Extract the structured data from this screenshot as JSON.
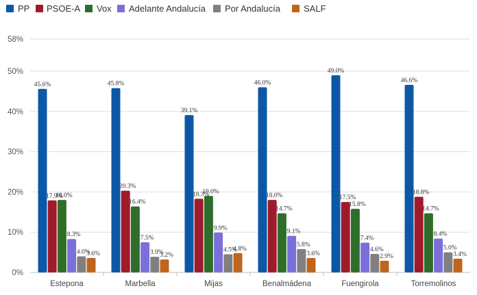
{
  "chart_data": {
    "type": "bar",
    "title": "",
    "xlabel": "",
    "ylabel": "",
    "ylim": [
      0,
      58
    ],
    "yticks": [
      0,
      10,
      20,
      30,
      40,
      50,
      58
    ],
    "ytick_labels": [
      "0%",
      "10%",
      "20%",
      "30%",
      "40%",
      "50%",
      "58%"
    ],
    "grid": true,
    "legend_position": "top-left",
    "categories": [
      "Estepona",
      "Marbella",
      "Mijas",
      "Benalmádena",
      "Fuengirola",
      "Torremolinos"
    ],
    "series": [
      {
        "name": "PP",
        "color": "#0d58a6",
        "values": [
          45.6,
          45.8,
          39.1,
          46.0,
          49.0,
          46.6
        ],
        "labels": [
          "45.6%",
          "45.8%",
          "39.1%",
          "46.0%",
          "49.0%",
          "46.6%"
        ]
      },
      {
        "name": "PSOE-A",
        "color": "#9e1b2b",
        "values": [
          17.9,
          20.3,
          18.3,
          18.0,
          17.5,
          18.8
        ],
        "labels": [
          "17.9%",
          "20.3%",
          "18.3%",
          "18.0%",
          "17.5%",
          "18.8%"
        ]
      },
      {
        "name": "Vox",
        "color": "#2f6e2a",
        "values": [
          18.0,
          16.4,
          19.0,
          14.7,
          15.8,
          14.7
        ],
        "labels": [
          "18.0%",
          "16.4%",
          "19.0%",
          "14.7%",
          "15.8%",
          "14.7%"
        ]
      },
      {
        "name": "Adelante Andalucía",
        "color": "#7b6fdc",
        "values": [
          8.3,
          7.5,
          9.9,
          9.1,
          7.4,
          8.4
        ],
        "labels": [
          "8.3%",
          "7.5%",
          "9.9%",
          "9.1%",
          "7.4%",
          "8.4%"
        ]
      },
      {
        "name": "Por Andalucía",
        "color": "#808080",
        "values": [
          4.0,
          3.9,
          4.5,
          5.8,
          4.6,
          5.0
        ],
        "labels": [
          "4.0%",
          "3.9%",
          "4.5%",
          "5.8%",
          "4.6%",
          "5.0%"
        ]
      },
      {
        "name": "SALF",
        "color": "#c0651c",
        "values": [
          3.6,
          3.2,
          4.8,
          3.6,
          2.9,
          3.4
        ],
        "labels": [
          "3.6%",
          "3.2%",
          "4.8%",
          "3.6%",
          "2.9%",
          "3.4%"
        ]
      }
    ]
  }
}
